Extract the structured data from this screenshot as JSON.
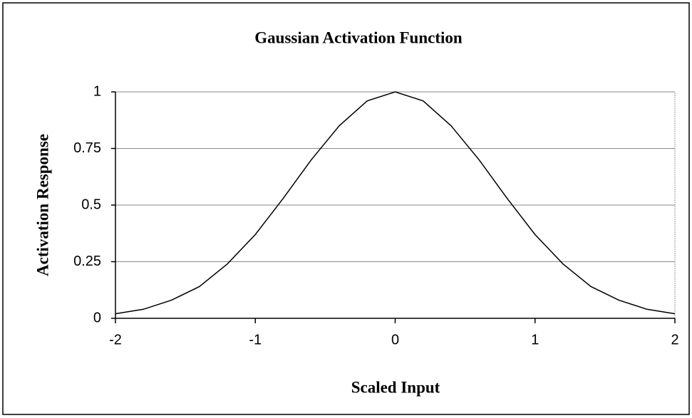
{
  "chart_data": {
    "type": "line",
    "title": "Gaussian Activation Function",
    "xlabel": "Scaled Input",
    "ylabel": "Activation Response",
    "x": [
      -2,
      -1.8,
      -1.6,
      -1.4,
      -1.2,
      -1,
      -0.8,
      -0.6,
      -0.4,
      -0.2,
      0,
      0.2,
      0.4,
      0.6,
      0.8,
      1,
      1.2,
      1.4,
      1.6,
      1.8,
      2
    ],
    "values": [
      0.02,
      0.04,
      0.08,
      0.14,
      0.24,
      0.37,
      0.53,
      0.7,
      0.85,
      0.96,
      1,
      0.96,
      0.85,
      0.7,
      0.53,
      0.37,
      0.24,
      0.14,
      0.08,
      0.04,
      0.02
    ],
    "color": "#000000",
    "xlim": [
      -2,
      2
    ],
    "xticks": [
      -2,
      -1,
      0,
      1,
      2
    ],
    "ylim": [
      0,
      1
    ],
    "yticks": [
      0,
      0.25,
      0.5,
      0.75,
      1
    ],
    "grid": true
  }
}
